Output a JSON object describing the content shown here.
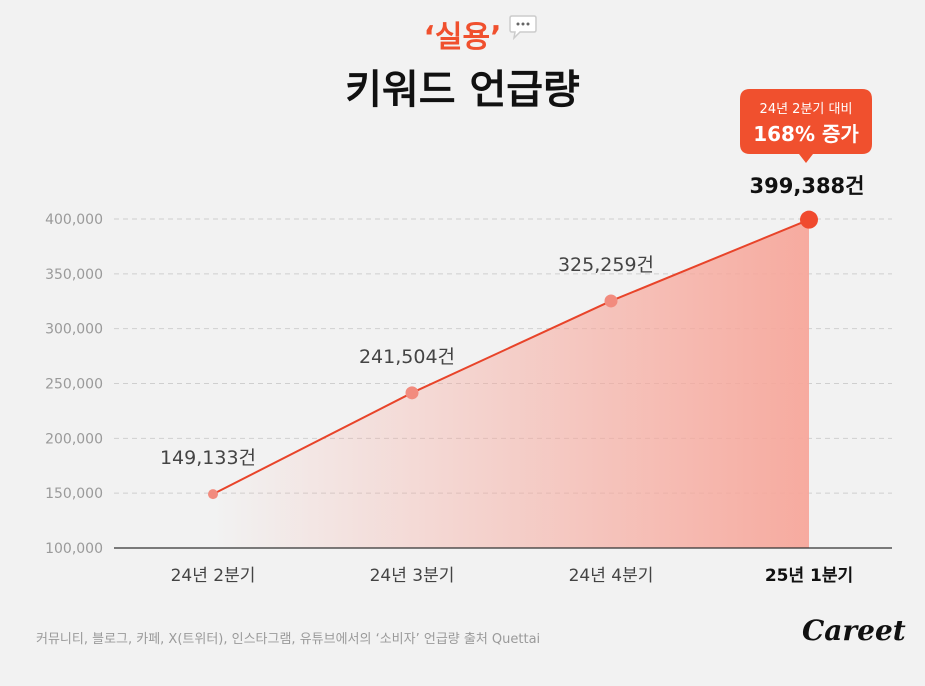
{
  "title": {
    "top": "‘실용’",
    "main": "키워드 언급량"
  },
  "callout": {
    "line1": "24년 2분기 대비",
    "line2": "168% 증가"
  },
  "source": "커뮤니티, 블로그, 카페, X(트위터), 인스타그램, 유튜브에서의 ‘소비자’ 언급량 출처 Quettai",
  "logo": "Careet",
  "colors": {
    "accent": "#f0502e",
    "line": "#e8442a",
    "point": "#f28b7e",
    "last_point": "#f04a2e",
    "fill_top": "#f7a79b",
    "grid": "#cfcfcf",
    "tick": "#9a9a9a",
    "background": "#f2f2f2"
  },
  "chart_data": {
    "type": "area",
    "categories": [
      "24년 2분기",
      "24년 3분기",
      "24년 4분기",
      "25년 1분기"
    ],
    "values": [
      149133,
      241504,
      325259,
      399388
    ],
    "data_labels": [
      "149,133건",
      "241,504건",
      "325,259건",
      "399,388건"
    ],
    "ylim": [
      100000,
      400000
    ],
    "yticks": [
      "100,000",
      "150,000",
      "200,000",
      "250,000",
      "300,000",
      "350,000",
      "400,000"
    ],
    "ytick_values": [
      100000,
      150000,
      200000,
      250000,
      300000,
      350000,
      400000
    ],
    "highlight_category": "25년 1분기",
    "grid": true,
    "legend": "none"
  }
}
